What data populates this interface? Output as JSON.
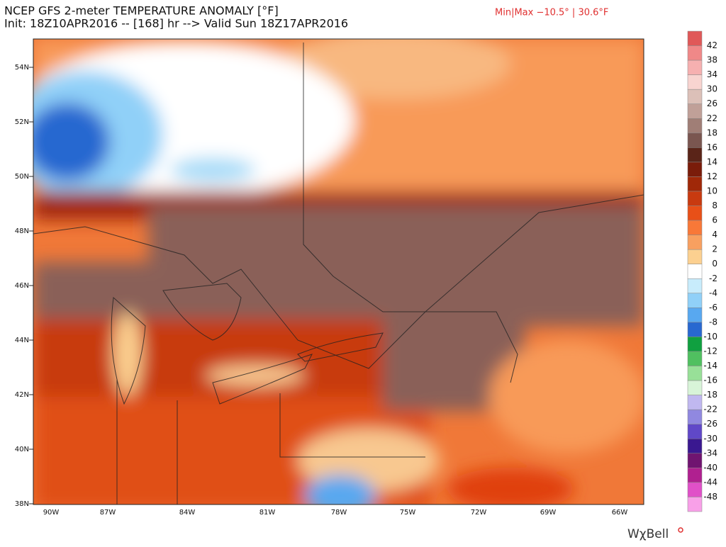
{
  "header": {
    "title": "NCEP GFS 2-meter TEMPERATURE ANOMALY [°F]",
    "init": "Init: 18Z10APR2016 -- [168] hr --> Valid Sun 18Z17APR2016",
    "minmax": "Min|Max −10.5° | 30.6°F"
  },
  "map": {
    "lat_labels": [
      "54N",
      "52N",
      "50N",
      "48N",
      "46N",
      "44N",
      "42N",
      "40N",
      "38N"
    ],
    "lon_labels": [
      "90W",
      "87W",
      "84W",
      "81W",
      "78W",
      "75W",
      "72W",
      "69W",
      "66W"
    ]
  },
  "colorbar": {
    "labels": [
      "42",
      "38",
      "34",
      "30",
      "26",
      "22",
      "18",
      "16",
      "14",
      "12",
      "10",
      "8",
      "6",
      "4",
      "2",
      "0",
      "-2",
      "-4",
      "-6",
      "-8",
      "-10",
      "-12",
      "-14",
      "-16",
      "-18",
      "-22",
      "-26",
      "-30",
      "-34",
      "-40",
      "-44",
      "-48"
    ],
    "colors": [
      "#e05858",
      "#f08888",
      "#f6b0b0",
      "#f8d4d0",
      "#dcc0b8",
      "#c0a098",
      "#a07e76",
      "#7a5650",
      "#5a2418",
      "#7a1c0a",
      "#a02808",
      "#c83a10",
      "#e85018",
      "#f87838",
      "#f8a060",
      "#fcd090",
      "#ffffff",
      "#c8ecfc",
      "#90d0f8",
      "#58a8f0",
      "#2868d0",
      "#10a040",
      "#50c060",
      "#98e098",
      "#d8f4d8",
      "#c0b8f0",
      "#9088e0",
      "#6048c8",
      "#3a1890",
      "#701470",
      "#b02090",
      "#e050c8",
      "#f8a0e8"
    ]
  },
  "brand": "WχBell"
}
